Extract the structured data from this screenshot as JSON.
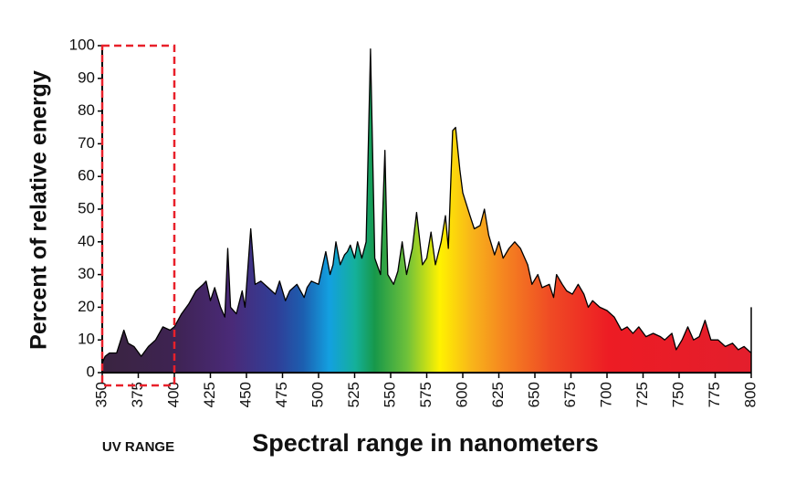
{
  "chart_data": {
    "type": "area",
    "x_label": "Spectral range in nanometers",
    "y_label": "Percent of relative energy",
    "x": [
      350,
      352,
      355,
      360,
      365,
      368,
      372,
      377,
      382,
      387,
      392,
      397,
      400,
      405,
      410,
      415,
      420,
      422,
      425,
      428,
      432,
      435,
      437,
      439,
      443,
      447,
      449,
      453,
      456,
      460,
      465,
      470,
      473,
      477,
      480,
      485,
      490,
      492,
      495,
      500,
      503,
      505,
      508,
      510,
      512,
      515,
      518,
      520,
      522,
      525,
      527,
      530,
      533,
      536,
      539,
      543,
      546,
      548,
      552,
      555,
      558,
      561,
      565,
      568,
      572,
      575,
      578,
      581,
      585,
      588,
      590,
      593,
      595,
      598,
      600,
      605,
      608,
      612,
      615,
      618,
      622,
      625,
      628,
      632,
      636,
      640,
      645,
      648,
      652,
      655,
      660,
      663,
      665,
      669,
      672,
      676,
      680,
      684,
      687,
      690,
      695,
      700,
      705,
      710,
      714,
      718,
      722,
      727,
      732,
      737,
      740,
      745,
      748,
      752,
      756,
      760,
      764,
      768,
      772,
      777,
      782,
      787,
      791,
      795,
      800
    ],
    "series": [
      {
        "color": "#000000",
        "values": [
          3,
          5,
          6,
          6,
          13,
          9,
          8,
          5,
          8,
          10,
          14,
          13,
          14,
          18,
          21,
          25,
          27,
          28,
          22,
          26,
          20,
          17,
          38,
          20,
          18,
          25,
          20,
          44,
          27,
          28,
          26,
          24,
          28,
          22,
          25,
          27,
          23,
          26,
          28,
          27,
          33,
          37,
          30,
          33,
          40,
          33,
          36,
          37,
          39,
          35,
          40,
          35,
          40,
          99,
          35,
          30,
          68,
          30,
          27,
          31,
          40,
          30,
          38,
          49,
          33,
          35,
          43,
          33,
          40,
          48,
          38,
          74,
          75,
          62,
          55,
          48,
          44,
          45,
          50,
          42,
          36,
          40,
          35,
          38,
          40,
          38,
          33,
          27,
          30,
          26,
          27,
          23,
          30,
          27,
          25,
          24,
          27,
          24,
          20,
          22,
          20,
          19,
          17,
          13,
          14,
          12,
          14,
          11,
          12,
          11,
          10,
          12,
          7,
          10,
          14,
          10,
          11,
          16,
          10,
          10,
          8,
          9,
          7,
          8,
          6
        ]
      }
    ],
    "xlim": [
      350,
      800
    ],
    "ylim": [
      0,
      100
    ],
    "xticks": [
      350,
      375,
      400,
      425,
      450,
      475,
      500,
      525,
      550,
      575,
      600,
      625,
      650,
      675,
      700,
      725,
      750,
      775,
      800
    ],
    "yticks": [
      0,
      10,
      20,
      30,
      40,
      50,
      60,
      70,
      80,
      90,
      100
    ],
    "annotation": {
      "text": "UV RANGE",
      "xrange": [
        350,
        400
      ],
      "color": "#e8202a"
    }
  }
}
